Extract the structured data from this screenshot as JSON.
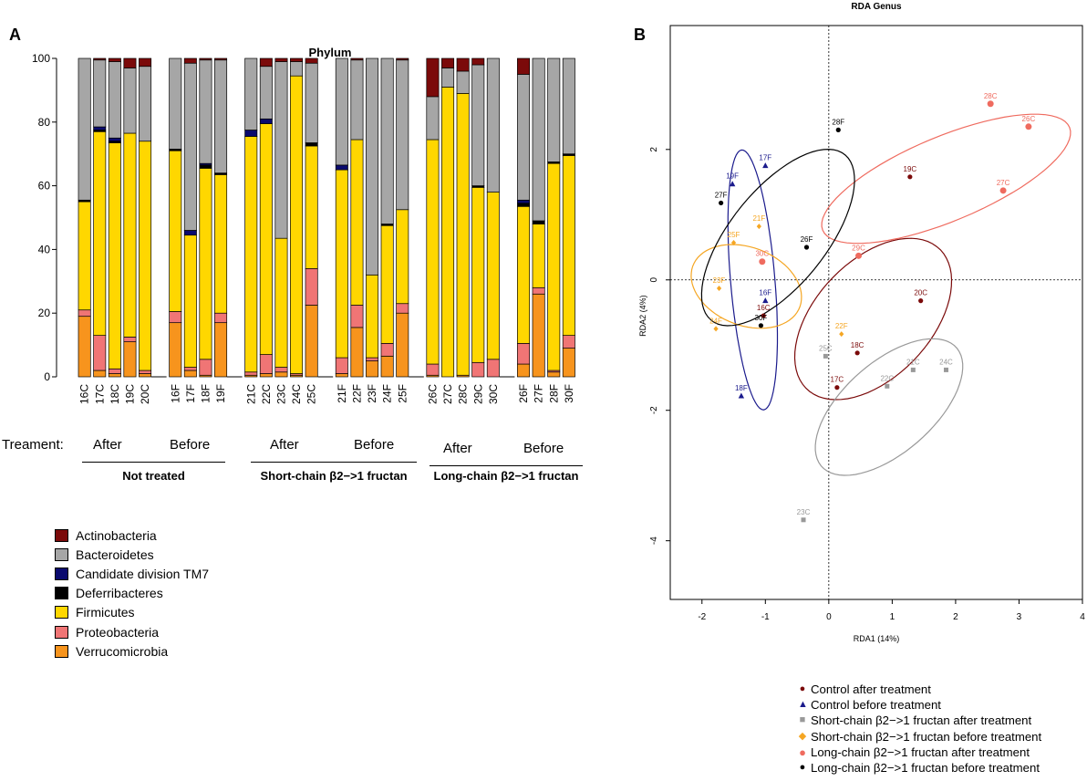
{
  "panelA": {
    "letter": "A",
    "title": "Phylum",
    "treatment_label": "Treament:",
    "groups": [
      {
        "name": "Not treated",
        "after": "After",
        "before": "Before"
      },
      {
        "name": "Short-chain β2−>1 fructan",
        "after": "After",
        "before": "Before"
      },
      {
        "name": "Long-chain β2−>1 fructan",
        "after": "After",
        "before": "Before"
      }
    ]
  },
  "panelB": {
    "letter": "B"
  },
  "colors": {
    "Actinobacteria": "#7b0a0a",
    "Bacteroidetes": "#a6a6a6",
    "Candidate division TM7": "#0a0a6e",
    "Deferribacteres": "#000000",
    "Firmicutes": "#ffd700",
    "Proteobacteria": "#f07575",
    "Verrucomicrobia": "#f7941d",
    "control_after": "#7b0a0a",
    "control_before": "#1a1a8c",
    "short_after": "#999999",
    "short_before": "#f5a623",
    "long_after": "#ef6b5f",
    "long_before": "#000000"
  },
  "chart_data": [
    {
      "type": "bar",
      "stacked": true,
      "title": "Phylum",
      "xlabel": "",
      "ylabel": "",
      "ylim": [
        0,
        100
      ],
      "yticks": [
        0,
        20,
        40,
        60,
        80,
        100
      ],
      "legend": [
        "Actinobacteria",
        "Bacteroidetes",
        "Candidate division TM7",
        "Deferribacteres",
        "Firmicutes",
        "Proteobacteria",
        "Verrucomicrobia"
      ],
      "bar_groups": [
        [
          "16C",
          "17C",
          "18C",
          "19C",
          "20C"
        ],
        [
          "16F",
          "17F",
          "18F",
          "19F"
        ],
        [
          "21C",
          "22C",
          "23C",
          "24C",
          "25C"
        ],
        [
          "21F",
          "22F",
          "23F",
          "24F",
          "25F"
        ],
        [
          "26C",
          "27C",
          "28C",
          "29C",
          "30C"
        ],
        [
          "26F",
          "27F",
          "28F",
          "30F"
        ]
      ],
      "stack_order": [
        "Verrucomicrobia",
        "Proteobacteria",
        "Firmicutes",
        "Deferribacteres",
        "Candidate division TM7",
        "Bacteroidetes",
        "Actinobacteria"
      ],
      "samples": {
        "16C": [
          19,
          2,
          34,
          0.5,
          0,
          44.5,
          0
        ],
        "17C": [
          2,
          11,
          64,
          0.5,
          1,
          21,
          0.5
        ],
        "18C": [
          1,
          1.5,
          71,
          0.5,
          1,
          24,
          1
        ],
        "19C": [
          11,
          1.5,
          64,
          0,
          0,
          20.5,
          3
        ],
        "20C": [
          1,
          1,
          72,
          0,
          0,
          23.5,
          2.5
        ],
        "16F": [
          17,
          3.5,
          50.5,
          0.5,
          0,
          28.5,
          0
        ],
        "17F": [
          2,
          1,
          41.5,
          0,
          1.5,
          52.5,
          1.5
        ],
        "18F": [
          0.5,
          5,
          60,
          1,
          0.5,
          32.5,
          0.5
        ],
        "19F": [
          17,
          3,
          43.5,
          0.5,
          0,
          35.5,
          0.5
        ],
        "21C": [
          0.5,
          1,
          74,
          0,
          2,
          22.5,
          0
        ],
        "22C": [
          1,
          6,
          72.5,
          0,
          1.5,
          16.5,
          2.5
        ],
        "23C": [
          1.5,
          1.5,
          40.5,
          0,
          0,
          55.5,
          1
        ],
        "24C": [
          0.5,
          0.5,
          93.5,
          0,
          0,
          4.5,
          1
        ],
        "25C": [
          22.5,
          11.5,
          38.5,
          1,
          0,
          25,
          1.5
        ],
        "21F": [
          1,
          5,
          59,
          0,
          1.5,
          33.5,
          0
        ],
        "22F": [
          15.5,
          7,
          52,
          0,
          0,
          25,
          0.5
        ],
        "23F": [
          5,
          1,
          26,
          0,
          0,
          68,
          0
        ],
        "24F": [
          6.5,
          4,
          37,
          0.5,
          0,
          52,
          0
        ],
        "25F": [
          20,
          3,
          29.5,
          0,
          0,
          47,
          0.5
        ],
        "26C": [
          0.5,
          3.5,
          70.5,
          0,
          0,
          13.5,
          12
        ],
        "27C": [
          0,
          0,
          91,
          0,
          0,
          6,
          3
        ],
        "28C": [
          0.5,
          0,
          88.5,
          0,
          0,
          7,
          4
        ],
        "29C": [
          0,
          4.5,
          55,
          0.5,
          0,
          38,
          2
        ],
        "30C": [
          0,
          5.5,
          52.5,
          0,
          0,
          42,
          0
        ],
        "26F": [
          4,
          6.5,
          43,
          1,
          1,
          39.5,
          5
        ],
        "27F": [
          26,
          2,
          20,
          1,
          0,
          51,
          0
        ],
        "28F": [
          1.5,
          0.5,
          65,
          0.5,
          0,
          32.5,
          0
        ],
        "30F": [
          9,
          4,
          56.5,
          0.5,
          0,
          30,
          0
        ]
      }
    },
    {
      "type": "scatter",
      "title": "RDA Genus",
      "xlabel": "RDA1 (14%)",
      "ylabel": "RDA2 (4%)",
      "xlim": [
        -2.5,
        4
      ],
      "ylim": [
        -4.9,
        3.9
      ],
      "xticks": [
        -2,
        -1,
        0,
        1,
        2,
        3,
        4
      ],
      "yticks": [
        -4,
        -2,
        0,
        2
      ],
      "grid": false,
      "legend": [
        {
          "key": "control_after",
          "label": "Control after treatment",
          "marker": "●"
        },
        {
          "key": "control_before",
          "label": "Control before treatment",
          "marker": "▲"
        },
        {
          "key": "short_after",
          "label": "Short-chain β2−>1 fructan after treatment",
          "marker": "■"
        },
        {
          "key": "short_before",
          "label": "Short-chain β2−>1 fructan before treatment",
          "marker": "◆"
        },
        {
          "key": "long_after",
          "label": "Long-chain β2−>1 fructan after treatment",
          "marker": "●"
        },
        {
          "key": "long_before",
          "label": "Long-chain β2−>1 fructan before treatment",
          "marker": "●"
        }
      ],
      "points": [
        {
          "label": "16C",
          "x": -1.03,
          "y": -0.55,
          "group": "control_after"
        },
        {
          "label": "17C",
          "x": 0.13,
          "y": -1.65,
          "group": "control_after"
        },
        {
          "label": "18C",
          "x": 0.45,
          "y": -1.12,
          "group": "control_after"
        },
        {
          "label": "19C",
          "x": 1.28,
          "y": 1.58,
          "group": "control_after"
        },
        {
          "label": "20C",
          "x": 1.45,
          "y": -0.32,
          "group": "control_after"
        },
        {
          "label": "16F",
          "x": -1.0,
          "y": -0.32,
          "group": "control_before"
        },
        {
          "label": "17F",
          "x": -1.0,
          "y": 1.75,
          "group": "control_before"
        },
        {
          "label": "18F",
          "x": -1.38,
          "y": -1.78,
          "group": "control_before"
        },
        {
          "label": "19F",
          "x": -1.52,
          "y": 1.47,
          "group": "control_before"
        },
        {
          "label": "21C",
          "x": 1.33,
          "y": -1.38,
          "group": "short_after"
        },
        {
          "label": "22C",
          "x": 0.92,
          "y": -1.63,
          "group": "short_after"
        },
        {
          "label": "23C",
          "x": -0.4,
          "y": -3.68,
          "group": "short_after"
        },
        {
          "label": "24C",
          "x": 1.85,
          "y": -1.38,
          "group": "short_after"
        },
        {
          "label": "25C",
          "x": -0.05,
          "y": -1.17,
          "group": "short_after"
        },
        {
          "label": "21F",
          "x": -1.1,
          "y": 0.82,
          "group": "short_before"
        },
        {
          "label": "22F",
          "x": 0.2,
          "y": -0.83,
          "group": "short_before"
        },
        {
          "label": "23F",
          "x": -1.73,
          "y": -0.13,
          "group": "short_before"
        },
        {
          "label": "24F",
          "x": -1.78,
          "y": -0.75,
          "group": "short_before"
        },
        {
          "label": "25F",
          "x": -1.5,
          "y": 0.57,
          "group": "short_before"
        },
        {
          "label": "26C",
          "x": 3.15,
          "y": 2.35,
          "group": "long_after"
        },
        {
          "label": "27C",
          "x": 2.75,
          "y": 1.37,
          "group": "long_after"
        },
        {
          "label": "28C",
          "x": 2.55,
          "y": 2.7,
          "group": "long_after"
        },
        {
          "label": "29C",
          "x": 0.47,
          "y": 0.37,
          "group": "long_after"
        },
        {
          "label": "30C",
          "x": -1.05,
          "y": 0.28,
          "group": "long_after"
        },
        {
          "label": "26F",
          "x": -0.35,
          "y": 0.5,
          "group": "long_before"
        },
        {
          "label": "27F",
          "x": -1.7,
          "y": 1.18,
          "group": "long_before"
        },
        {
          "label": "28F",
          "x": 0.15,
          "y": 2.3,
          "group": "long_before"
        },
        {
          "label": "30F",
          "x": -1.07,
          "y": -0.7,
          "group": "long_before"
        }
      ],
      "ellipses": [
        {
          "group": "control_after",
          "cx": 0.7,
          "cy": -0.6,
          "rx": 1.5,
          "ry": 0.9,
          "angle_deg": 45
        },
        {
          "group": "control_before",
          "cx": -1.2,
          "cy": 0.0,
          "rx": 0.35,
          "ry": 2.0,
          "angle_deg": 5
        },
        {
          "group": "short_after",
          "cx": 0.95,
          "cy": -1.95,
          "rx": 0.7,
          "ry": 1.4,
          "angle_deg": -50
        },
        {
          "group": "short_before",
          "cx": -1.3,
          "cy": -0.1,
          "rx": 0.9,
          "ry": 0.6,
          "angle_deg": -20
        },
        {
          "group": "long_after",
          "cx": 1.85,
          "cy": 1.55,
          "rx": 2.1,
          "ry": 0.65,
          "angle_deg": 22
        },
        {
          "group": "long_before",
          "cx": -0.8,
          "cy": 0.65,
          "rx": 0.75,
          "ry": 1.65,
          "angle_deg": -40
        }
      ]
    }
  ]
}
